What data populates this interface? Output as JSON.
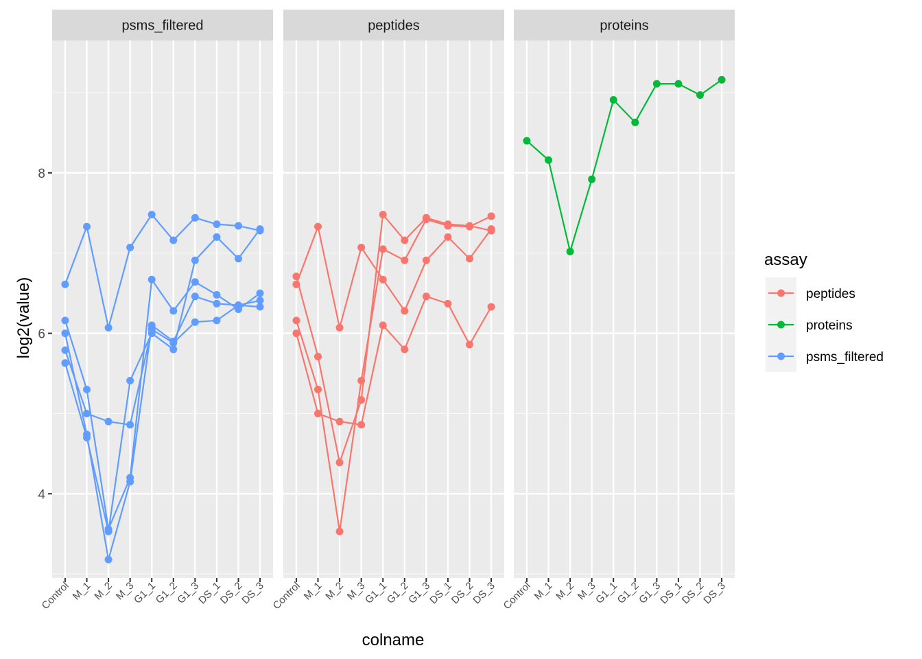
{
  "chart_data": {
    "type": "line",
    "xlabel": "colname",
    "ylabel": "log2(value)",
    "ylim": [
      2.95,
      9.65
    ],
    "yticks": [
      4,
      6,
      8
    ],
    "categories": [
      "Control",
      "M_1",
      "M_2",
      "M_3",
      "G1_1",
      "G1_2",
      "G1_3",
      "DS_1",
      "DS_2",
      "DS_3"
    ],
    "legend": {
      "title": "assay",
      "placement": "right",
      "entries": [
        {
          "label": "peptides",
          "color": "#F8766D"
        },
        {
          "label": "proteins",
          "color": "#00BA38"
        },
        {
          "label": "psms_filtered",
          "color": "#619CFF"
        }
      ]
    },
    "panels": [
      {
        "title": "psms_filtered",
        "color": "#619CFF",
        "series": [
          {
            "values": [
              6.61,
              7.33,
              6.07,
              7.07,
              7.48,
              7.16,
              7.44,
              7.36,
              7.34,
              7.28
            ]
          },
          {
            "values": [
              6.16,
              5.3,
              3.56,
              4.2,
              6.67,
              6.28,
              6.64,
              6.48,
              6.3,
              6.5
            ]
          },
          {
            "values": [
              6.0,
              4.74,
              3.18,
              4.15,
              6.1,
              5.9,
              6.46,
              6.37,
              6.35,
              6.41
            ]
          },
          {
            "values": [
              5.79,
              5.0,
              4.9,
              4.86,
              6.05,
              5.88,
              6.14,
              6.16,
              6.35,
              6.33
            ]
          },
          {
            "values": [
              5.63,
              4.7,
              3.53,
              5.41,
              6.0,
              5.8,
              6.91,
              7.2,
              6.93,
              7.3
            ]
          }
        ]
      },
      {
        "title": "peptides",
        "color": "#F8766D",
        "series": [
          {
            "values": [
              6.71,
              5.71,
              4.39,
              5.17,
              7.48,
              7.16,
              7.44,
              7.36,
              7.34,
              7.28
            ]
          },
          {
            "values": [
              6.61,
              7.33,
              6.07,
              7.07,
              6.67,
              6.28,
              6.91,
              7.2,
              6.93,
              7.3
            ]
          },
          {
            "values": [
              6.16,
              5.3,
              3.53,
              5.41,
              7.05,
              6.91,
              7.42,
              7.34,
              7.33,
              7.46
            ]
          },
          {
            "values": [
              6.0,
              5.0,
              4.9,
              4.86,
              6.1,
              5.8,
              6.46,
              6.37,
              5.86,
              6.33
            ]
          }
        ]
      },
      {
        "title": "proteins",
        "color": "#00BA38",
        "series": [
          {
            "values": [
              8.4,
              8.16,
              7.02,
              7.92,
              8.91,
              8.63,
              9.11,
              9.11,
              8.97,
              9.16
            ]
          }
        ]
      }
    ]
  }
}
